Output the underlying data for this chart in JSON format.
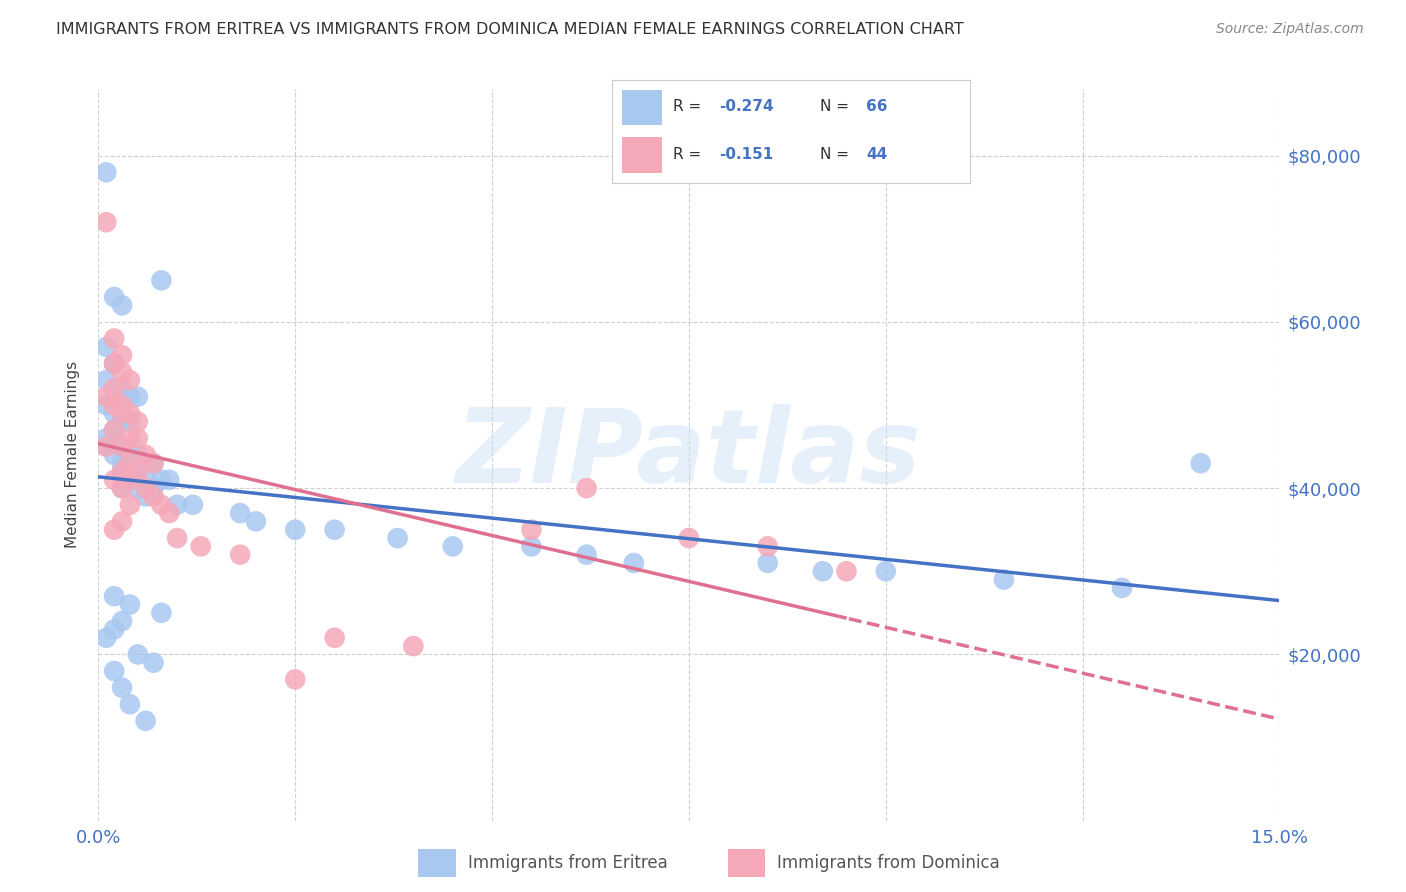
{
  "title": "IMMIGRANTS FROM ERITREA VS IMMIGRANTS FROM DOMINICA MEDIAN FEMALE EARNINGS CORRELATION CHART",
  "source": "Source: ZipAtlas.com",
  "ylabel": "Median Female Earnings",
  "y_tick_labels": [
    "$20,000",
    "$40,000",
    "$60,000",
    "$80,000"
  ],
  "y_tick_values": [
    20000,
    40000,
    60000,
    80000
  ],
  "xlim": [
    0.0,
    0.15
  ],
  "ylim": [
    0,
    88000
  ],
  "legend_eritrea": "Immigrants from Eritrea",
  "legend_dominica": "Immigrants from Dominica",
  "R_eritrea": -0.274,
  "N_eritrea": 66,
  "R_dominica": -0.151,
  "N_dominica": 44,
  "color_eritrea": "#a8c8f0",
  "color_dominica": "#f5a8b8",
  "line_color_eritrea": "#4472c4",
  "line_color_dominica": "#e07090",
  "background_color": "#ffffff",
  "eritrea_x": [
    0.001,
    0.008,
    0.002,
    0.003,
    0.001,
    0.002,
    0.002,
    0.001,
    0.003,
    0.004,
    0.005,
    0.003,
    0.002,
    0.001,
    0.002,
    0.003,
    0.004,
    0.002,
    0.001,
    0.003,
    0.001,
    0.002,
    0.004,
    0.005,
    0.003,
    0.006,
    0.007,
    0.004,
    0.003,
    0.005,
    0.006,
    0.008,
    0.009,
    0.003,
    0.007,
    0.005,
    0.006,
    0.01,
    0.012,
    0.018,
    0.02,
    0.025,
    0.03,
    0.038,
    0.045,
    0.055,
    0.062,
    0.068,
    0.085,
    0.092,
    0.1,
    0.115,
    0.13,
    0.002,
    0.004,
    0.008,
    0.003,
    0.002,
    0.001,
    0.005,
    0.007,
    0.002,
    0.003,
    0.004,
    0.006,
    0.14
  ],
  "eritrea_y": [
    78000,
    65000,
    63000,
    62000,
    57000,
    55000,
    55000,
    53000,
    52000,
    51000,
    51000,
    50000,
    50000,
    50000,
    49000,
    48000,
    48000,
    47000,
    46000,
    45000,
    45000,
    44000,
    44000,
    44000,
    43000,
    43000,
    43000,
    42000,
    42000,
    42000,
    41000,
    41000,
    41000,
    40000,
    40000,
    40000,
    39000,
    38000,
    38000,
    37000,
    36000,
    35000,
    35000,
    34000,
    33000,
    33000,
    32000,
    31000,
    31000,
    30000,
    30000,
    29000,
    28000,
    27000,
    26000,
    25000,
    24000,
    23000,
    22000,
    20000,
    19000,
    18000,
    16000,
    14000,
    12000,
    43000
  ],
  "dominica_x": [
    0.001,
    0.002,
    0.003,
    0.002,
    0.003,
    0.004,
    0.002,
    0.001,
    0.003,
    0.002,
    0.004,
    0.003,
    0.005,
    0.002,
    0.004,
    0.005,
    0.001,
    0.003,
    0.006,
    0.004,
    0.007,
    0.005,
    0.003,
    0.004,
    0.002,
    0.006,
    0.003,
    0.007,
    0.004,
    0.008,
    0.009,
    0.003,
    0.002,
    0.01,
    0.013,
    0.018,
    0.025,
    0.055,
    0.062,
    0.075,
    0.085,
    0.095,
    0.04,
    0.03
  ],
  "dominica_y": [
    72000,
    58000,
    56000,
    55000,
    54000,
    53000,
    52000,
    51000,
    50000,
    50000,
    49000,
    49000,
    48000,
    47000,
    46000,
    46000,
    45000,
    45000,
    44000,
    43000,
    43000,
    42000,
    42000,
    41000,
    41000,
    40000,
    40000,
    39000,
    38000,
    38000,
    37000,
    36000,
    35000,
    34000,
    33000,
    32000,
    17000,
    35000,
    40000,
    34000,
    33000,
    30000,
    21000,
    22000
  ]
}
